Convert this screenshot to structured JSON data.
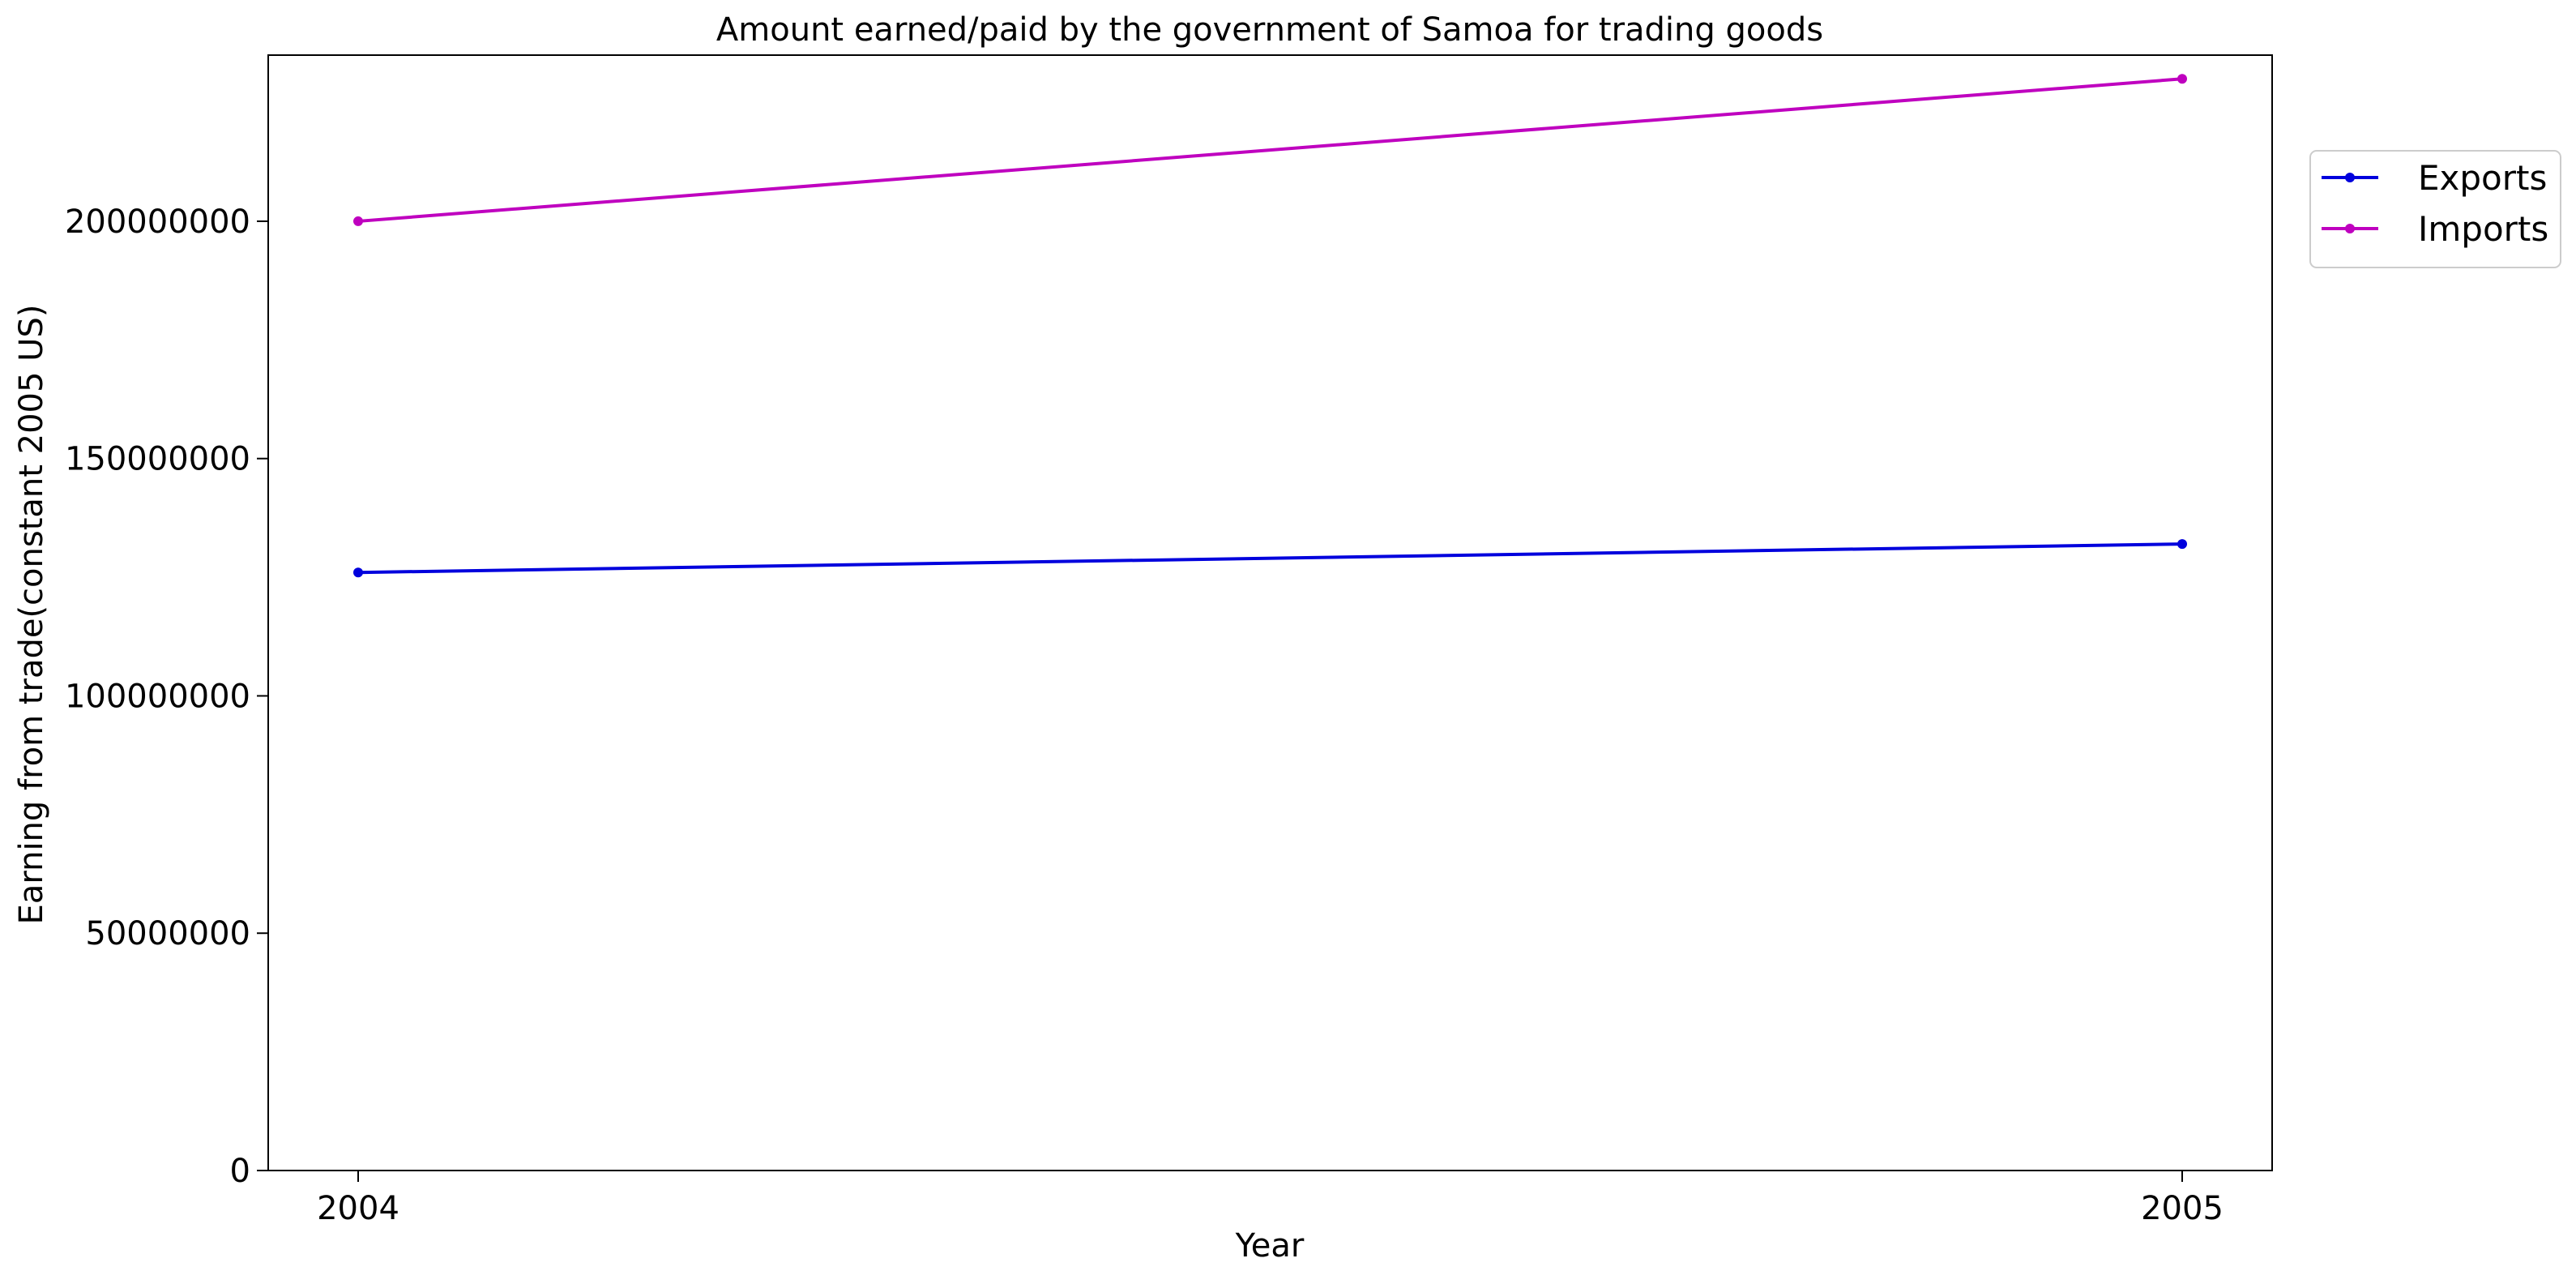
{
  "chart_data": {
    "type": "line",
    "title": "Amount earned/paid by the government of Samoa for trading goods",
    "xlabel": "Year",
    "ylabel": "Earning from trade(constant 2005 US)",
    "x": [
      "2004",
      "2005"
    ],
    "ylim": [
      0,
      235000000
    ],
    "yticks": [
      0,
      50000000,
      100000000,
      150000000,
      200000000
    ],
    "ytick_labels": [
      "0",
      "50000000",
      "100000000",
      "150000000",
      "200000000"
    ],
    "series": [
      {
        "name": "Exports",
        "color": "#0000dd",
        "values": [
          126000000,
          132000000
        ]
      },
      {
        "name": "Imports",
        "color": "#bf00bf",
        "values": [
          200000000,
          230000000
        ]
      }
    ],
    "legend": "upper-right-outside",
    "grid": false
  }
}
